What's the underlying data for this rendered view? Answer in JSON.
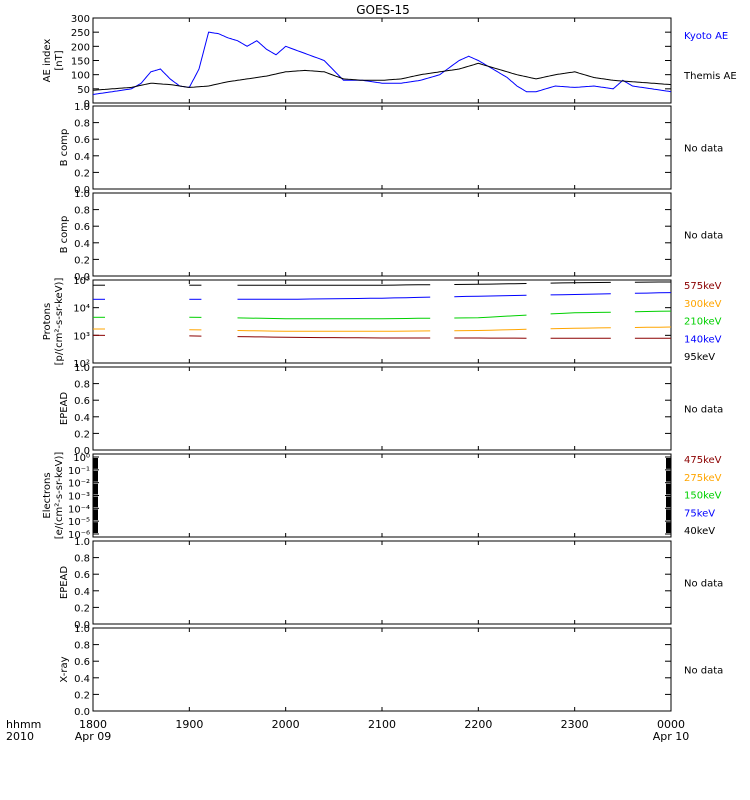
{
  "figure": {
    "title": "GOES-15",
    "time_label_top": "hhmm",
    "time_label_bottom": "2010",
    "x_ticks": [
      "1800",
      "1900",
      "2000",
      "2100",
      "2200",
      "2300",
      "0000"
    ],
    "x_dates": [
      {
        "tick": "1800",
        "label": "Apr 09"
      },
      {
        "tick": "0000",
        "label": "Apr 10"
      }
    ]
  },
  "colors": {
    "frame": "#000000",
    "kyoto": "#0000ff",
    "themis": "#000000",
    "red": "#8b0000",
    "orange": "#ffa500",
    "green": "#00d000",
    "blue": "#0000ff",
    "black": "#000000"
  },
  "chart_data": [
    {
      "type": "line",
      "ylabel": [
        "AE index",
        "[nT]"
      ],
      "ylim": [
        0,
        300
      ],
      "y_ticks": [
        "0",
        "50",
        "100",
        "150",
        "200",
        "250",
        "300"
      ],
      "xlim": [
        18.0,
        24.0
      ],
      "series": [
        {
          "name": "Kyoto AE",
          "color": "blue",
          "x": [
            18.0,
            18.2,
            18.4,
            18.5,
            18.6,
            18.7,
            18.8,
            18.9,
            19.0,
            19.1,
            19.2,
            19.3,
            19.4,
            19.5,
            19.6,
            19.7,
            19.8,
            19.9,
            20.0,
            20.2,
            20.4,
            20.6,
            20.8,
            21.0,
            21.2,
            21.4,
            21.6,
            21.8,
            21.9,
            22.0,
            22.2,
            22.3,
            22.4,
            22.5,
            22.6,
            22.8,
            23.0,
            23.2,
            23.4,
            23.5,
            23.6,
            23.8,
            24.0
          ],
          "y": [
            30,
            40,
            50,
            70,
            110,
            120,
            85,
            60,
            55,
            120,
            250,
            245,
            230,
            220,
            200,
            220,
            190,
            170,
            200,
            175,
            150,
            80,
            80,
            70,
            70,
            80,
            100,
            150,
            165,
            150,
            110,
            90,
            60,
            40,
            40,
            60,
            55,
            60,
            50,
            80,
            60,
            50,
            40
          ]
        },
        {
          "name": "Themis AE",
          "color": "themis",
          "x": [
            18.0,
            18.2,
            18.4,
            18.6,
            18.8,
            19.0,
            19.2,
            19.4,
            19.6,
            19.8,
            20.0,
            20.2,
            20.4,
            20.6,
            20.8,
            21.0,
            21.2,
            21.4,
            21.6,
            21.8,
            22.0,
            22.2,
            22.4,
            22.6,
            22.8,
            23.0,
            23.2,
            23.4,
            23.6,
            23.8,
            24.0
          ],
          "y": [
            45,
            50,
            55,
            70,
            65,
            55,
            60,
            75,
            85,
            95,
            110,
            115,
            110,
            85,
            80,
            80,
            85,
            100,
            110,
            120,
            140,
            120,
            100,
            85,
            100,
            110,
            90,
            80,
            75,
            70,
            65
          ]
        }
      ]
    },
    {
      "type": "line",
      "ylabel": [
        "B comp"
      ],
      "ylim": [
        0.0,
        1.0
      ],
      "y_ticks": [
        "0.0",
        "0.2",
        "0.4",
        "0.6",
        "0.8",
        "1.0"
      ],
      "status": "No data"
    },
    {
      "type": "line",
      "ylabel": [
        "B comp"
      ],
      "ylim": [
        0.0,
        1.0
      ],
      "y_ticks": [
        "0.0",
        "0.2",
        "0.4",
        "0.6",
        "0.8",
        "1.0"
      ],
      "status": "No data"
    },
    {
      "type": "line",
      "log_scale": true,
      "ylabel": [
        "Protons",
        "[p/(cm²-s-sr-keV)]"
      ],
      "ylim": [
        100,
        100000
      ],
      "y_ticks": [
        "10²",
        "10³",
        "10⁴",
        "10⁵"
      ],
      "y_tick_values": [
        100,
        1000,
        10000,
        100000
      ],
      "data_gaps": [
        [
          18.15,
          18.95
        ],
        [
          19.18,
          19.48
        ],
        [
          21.6,
          21.63
        ],
        [
          22.6,
          22.64
        ],
        [
          23.45,
          23.52
        ]
      ],
      "series": [
        {
          "name": "575keV",
          "color": "red",
          "x": [
            18.0,
            19.0,
            20.0,
            21.0,
            22.0,
            23.0,
            24.0
          ],
          "y": [
            1000,
            950,
            850,
            800,
            800,
            780,
            780
          ]
        },
        {
          "name": "300keV",
          "color": "orange",
          "x": [
            18.0,
            19.0,
            20.0,
            21.0,
            22.0,
            23.0,
            24.0
          ],
          "y": [
            1700,
            1600,
            1400,
            1400,
            1500,
            1800,
            2000
          ]
        },
        {
          "name": "210keV",
          "color": "green",
          "x": [
            18.0,
            19.0,
            20.0,
            21.0,
            22.0,
            23.0,
            24.0
          ],
          "y": [
            4500,
            4500,
            4000,
            4000,
            4300,
            6500,
            7500
          ]
        },
        {
          "name": "140keV",
          "color": "blue",
          "x": [
            18.0,
            19.0,
            20.0,
            21.0,
            22.0,
            23.0,
            24.0
          ],
          "y": [
            20000,
            20000,
            20000,
            22000,
            26000,
            30000,
            35000
          ]
        },
        {
          "name": "95keV",
          "color": "black",
          "x": [
            18.0,
            19.0,
            20.0,
            21.0,
            22.0,
            23.0,
            24.0
          ],
          "y": [
            65000,
            65000,
            65000,
            65000,
            70000,
            80000,
            85000
          ]
        }
      ]
    },
    {
      "type": "line",
      "ylabel": [
        "EPEAD"
      ],
      "ylim": [
        0.0,
        1.0
      ],
      "y_ticks": [
        "0.0",
        "0.2",
        "0.4",
        "0.6",
        "0.8",
        "1.0"
      ],
      "status": "No data"
    },
    {
      "type": "line",
      "log_scale": true,
      "ylabel": [
        "Electrons",
        "[e/(cm²-s-sr-keV)]"
      ],
      "y_ticks": [
        "10⁰",
        "10⁻¹",
        "10⁻²",
        "10⁻³",
        "10⁻⁴",
        "10⁻⁵",
        "10⁻⁶"
      ],
      "series": [
        {
          "name": "475keV",
          "color": "red"
        },
        {
          "name": "275keV",
          "color": "orange"
        },
        {
          "name": "150keV",
          "color": "green"
        },
        {
          "name": "75keV",
          "color": "blue"
        },
        {
          "name": "40keV",
          "color": "black"
        }
      ]
    },
    {
      "type": "line",
      "ylabel": [
        "EPEAD"
      ],
      "ylim": [
        0.0,
        1.0
      ],
      "y_ticks": [
        "0.0",
        "0.2",
        "0.4",
        "0.6",
        "0.8",
        "1.0"
      ],
      "status": "No data"
    },
    {
      "type": "line",
      "ylabel": [
        "X-ray"
      ],
      "ylim": [
        0.0,
        1.0
      ],
      "y_ticks": [
        "0.0",
        "0.2",
        "0.4",
        "0.6",
        "0.8",
        "1.0"
      ],
      "status": "No data"
    }
  ]
}
